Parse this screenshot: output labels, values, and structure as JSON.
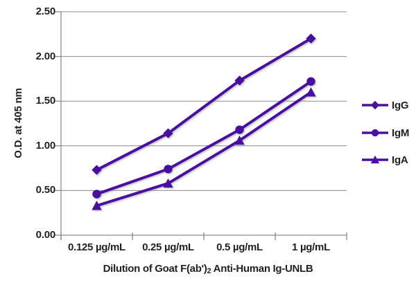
{
  "chart_data": {
    "type": "line",
    "categories": [
      "0.125 µg/mL",
      "0.25 µg/mL",
      "0.5 µg/mL",
      "1 µg/mL"
    ],
    "series": [
      {
        "name": "IgG",
        "marker": "diamond",
        "values": [
          0.73,
          1.14,
          1.73,
          2.2
        ]
      },
      {
        "name": "IgM",
        "marker": "circle",
        "values": [
          0.46,
          0.74,
          1.18,
          1.72
        ]
      },
      {
        "name": "IgA",
        "marker": "triangle",
        "values": [
          0.33,
          0.58,
          1.06,
          1.6
        ]
      }
    ],
    "xlabel": "Dilution of Goat F(ab')2 Anti-Human Ig-UNLB",
    "xlabel_parts": {
      "pre": "Dilution of Goat F(ab')",
      "sub": "2",
      "post": " Anti-Human Ig-UNLB"
    },
    "ylabel": "O.D. at 405 nm",
    "ylim": [
      0,
      2.5
    ],
    "y_tick_step": 0.5,
    "y_ticks": [
      "0.00",
      "0.50",
      "1.00",
      "1.50",
      "2.00",
      "2.50"
    ],
    "grid": "horizontal",
    "legend_position": "right",
    "colors": {
      "line": "#4A10A0",
      "grid": "#8A8A8A",
      "axis": "#8A8A8A",
      "text": "#231F20",
      "background": "#FFFFFF"
    }
  }
}
